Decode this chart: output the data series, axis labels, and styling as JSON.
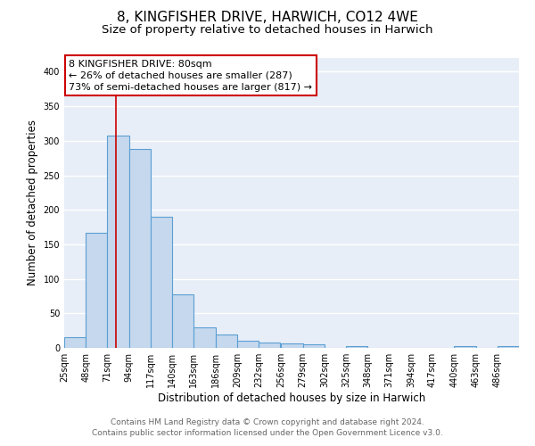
{
  "title": "8, KINGFISHER DRIVE, HARWICH, CO12 4WE",
  "subtitle": "Size of property relative to detached houses in Harwich",
  "xlabel": "Distribution of detached houses by size in Harwich",
  "ylabel": "Number of detached properties",
  "footer_line1": "Contains HM Land Registry data © Crown copyright and database right 2024.",
  "footer_line2": "Contains public sector information licensed under the Open Government Licence v3.0.",
  "bin_labels": [
    "25sqm",
    "48sqm",
    "71sqm",
    "94sqm",
    "117sqm",
    "140sqm",
    "163sqm",
    "186sqm",
    "209sqm",
    "232sqm",
    "256sqm",
    "279sqm",
    "302sqm",
    "325sqm",
    "348sqm",
    "371sqm",
    "394sqm",
    "417sqm",
    "440sqm",
    "463sqm",
    "486sqm"
  ],
  "bin_edges": [
    25,
    48,
    71,
    94,
    117,
    140,
    163,
    186,
    209,
    232,
    256,
    279,
    302,
    325,
    348,
    371,
    394,
    417,
    440,
    463,
    486
  ],
  "bin_width": 23,
  "bar_heights": [
    15,
    167,
    307,
    288,
    190,
    78,
    30,
    20,
    10,
    8,
    7,
    5,
    0,
    2,
    0,
    0,
    0,
    0,
    3,
    0,
    3
  ],
  "bar_color": "#c5d8ed",
  "bar_edge_color": "#5a9fd4",
  "bar_edge_width": 0.8,
  "red_line_x": 80,
  "red_line_color": "#cc0000",
  "annotation_line1": "8 KINGFISHER DRIVE: 80sqm",
  "annotation_line2": "← 26% of detached houses are smaller (287)",
  "annotation_line3": "73% of semi-detached houses are larger (817) →",
  "ylim": [
    0,
    420
  ],
  "yticks": [
    0,
    50,
    100,
    150,
    200,
    250,
    300,
    350,
    400
  ],
  "background_color": "#ffffff",
  "plot_background_color": "#e8eef7",
  "grid_color": "#ffffff",
  "title_fontsize": 11,
  "subtitle_fontsize": 9.5,
  "axis_label_fontsize": 8.5,
  "tick_fontsize": 7,
  "footer_fontsize": 6.5,
  "annotation_fontsize": 8
}
